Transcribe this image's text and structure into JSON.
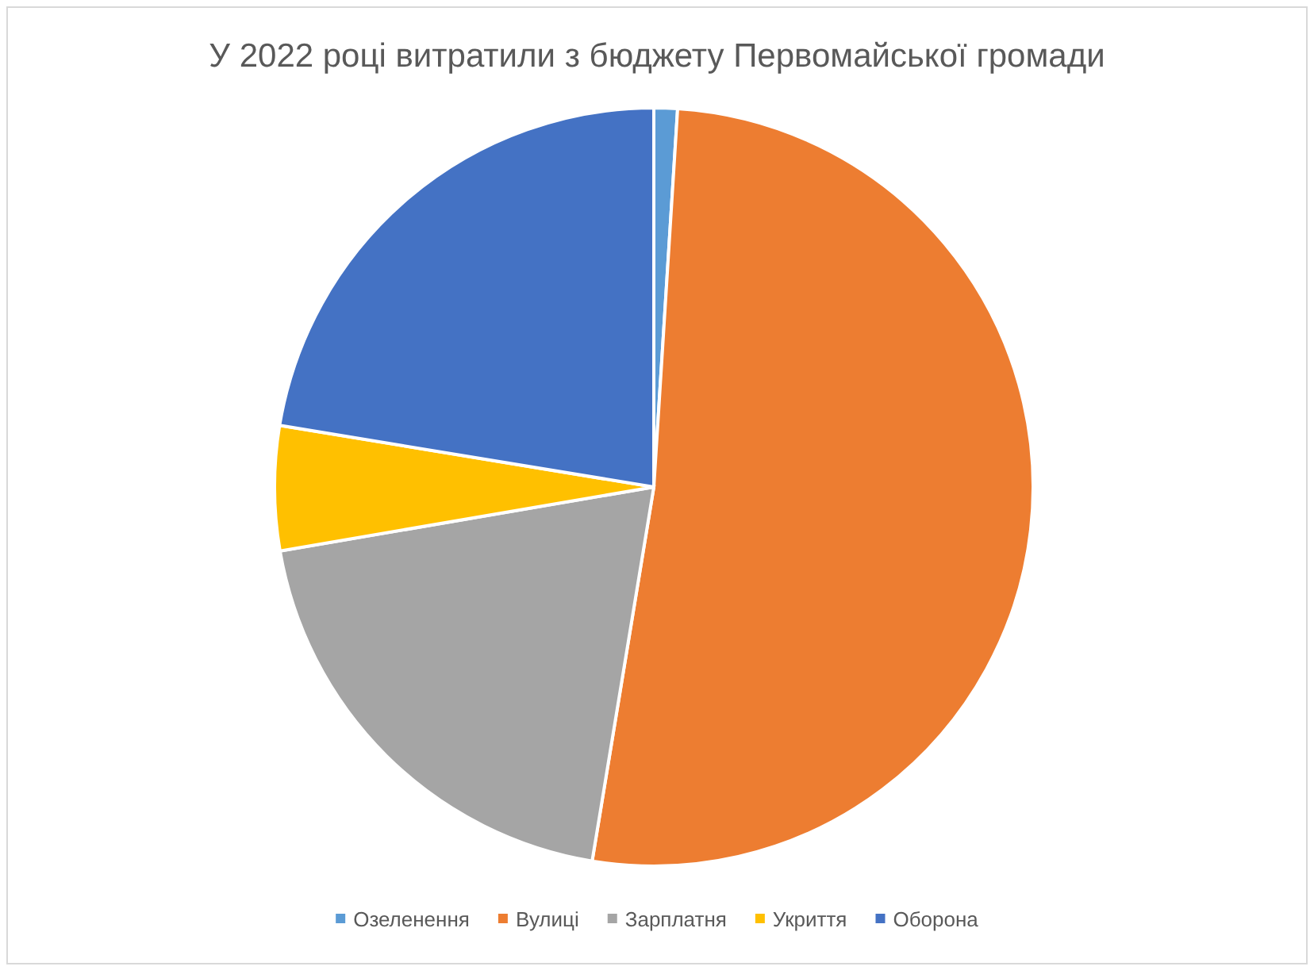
{
  "chart_data": {
    "type": "pie",
    "title": "У 2022 році витратили з бюджету Первомайської громади",
    "categories": [
      "Озеленення",
      "Вулиці",
      "Зарплатня",
      "Укриття",
      "Оборона"
    ],
    "values": [
      1,
      51.6,
      19.7,
      5.3,
      22.4
    ],
    "colors": [
      "#5b9bd5",
      "#ed7d31",
      "#a5a5a5",
      "#ffc000",
      "#4472c4"
    ],
    "legend": "bottom"
  }
}
